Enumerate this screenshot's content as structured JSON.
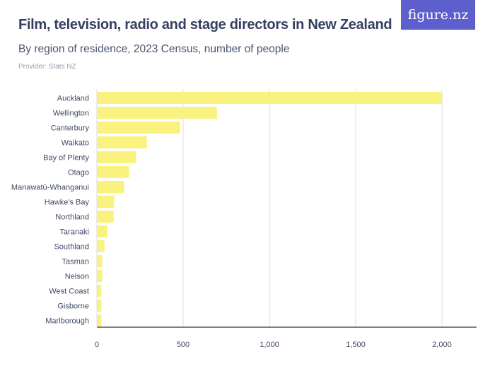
{
  "header": {
    "title": "Film, television, radio and stage directors in New Zealand",
    "subtitle": "By region of residence, 2023 Census, number of people",
    "provider": "Provider: Stats NZ",
    "logo": "figure.nz"
  },
  "colors": {
    "bar": "#f9f27e",
    "logo_bg": "#5c5fcc",
    "grid": "#dddddd",
    "axis": "#555555"
  },
  "chart_data": {
    "type": "bar",
    "orientation": "horizontal",
    "categories": [
      "Auckland",
      "Wellington",
      "Canterbury",
      "Waikato",
      "Bay of Plenty",
      "Otago",
      "Manawatū-Whanganui",
      "Hawke's Bay",
      "Northland",
      "Taranaki",
      "Southland",
      "Tasman",
      "Nelson",
      "West Coast",
      "Gisborne",
      "Marlborough"
    ],
    "values": [
      2000,
      696,
      483,
      290,
      227,
      186,
      158,
      100,
      97,
      60,
      44,
      31,
      31,
      26,
      26,
      26
    ],
    "xlim": [
      0,
      2200
    ],
    "xticks": [
      0,
      500,
      1000,
      1500,
      2000
    ],
    "xtick_labels": [
      "0",
      "500",
      "1,000",
      "1,500",
      "2,000"
    ],
    "grid": true
  }
}
